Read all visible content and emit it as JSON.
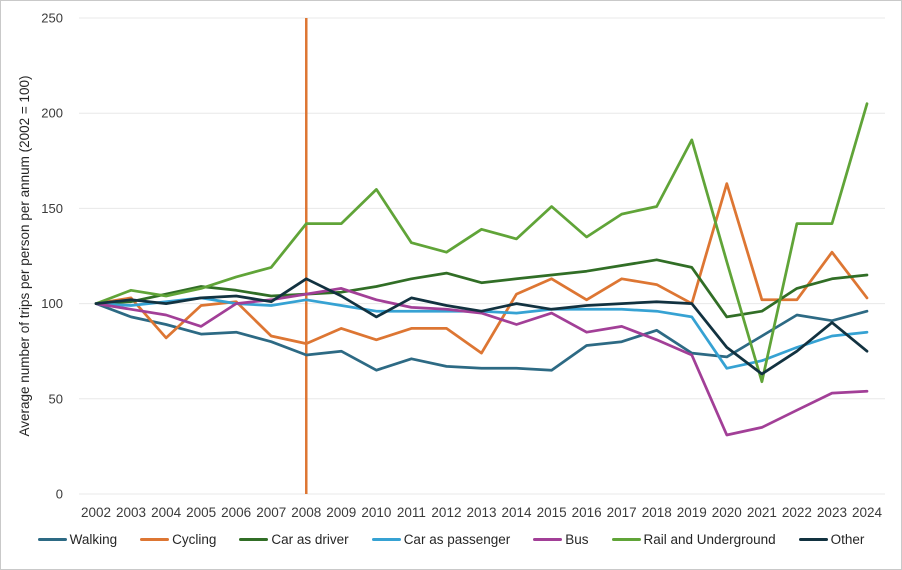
{
  "chart_data": {
    "type": "line",
    "title": "",
    "ylabel": "Average number of trips per person per annum (2002 = 100)",
    "xlabel": "",
    "x": [
      2002,
      2003,
      2004,
      2005,
      2006,
      2007,
      2008,
      2009,
      2010,
      2011,
      2012,
      2013,
      2014,
      2015,
      2016,
      2017,
      2018,
      2019,
      2020,
      2021,
      2022,
      2023,
      2024
    ],
    "xtick_labels": [
      "2002",
      "2003",
      "2004",
      "2005",
      "2006",
      "2007",
      "2008",
      "2009",
      "2010",
      "2011",
      "2012",
      "2013",
      "2014",
      "2015",
      "2016",
      "2017",
      "2018",
      "2019",
      "2020",
      "2021",
      "2022",
      "2023",
      "2024"
    ],
    "ylim": [
      0,
      250
    ],
    "yticks": [
      0,
      50,
      100,
      150,
      200,
      250
    ],
    "ytick_labels": [
      "0",
      "50",
      "100",
      "150",
      "200",
      "250"
    ],
    "grid": true,
    "legend_position": "bottom",
    "annotations": [
      {
        "type": "vline",
        "x": 2008,
        "y_from": 0,
        "y_to": 250,
        "color": "#dd7633",
        "note": "vertical orange line at 2008"
      }
    ],
    "series": [
      {
        "name": "Walking",
        "color": "#2d6a84",
        "values": [
          100,
          93,
          89,
          84,
          85,
          80,
          73,
          75,
          65,
          71,
          67,
          66,
          66,
          65,
          78,
          80,
          86,
          74,
          72,
          83,
          94,
          91,
          96
        ]
      },
      {
        "name": "Cycling",
        "color": "#dd7633",
        "values": [
          100,
          103,
          82,
          99,
          101,
          83,
          79,
          87,
          81,
          87,
          87,
          74,
          105,
          113,
          102,
          113,
          110,
          100,
          163,
          102,
          102,
          127,
          103
        ]
      },
      {
        "name": "Car as driver",
        "color": "#316e26",
        "values": [
          100,
          101,
          105,
          109,
          107,
          104,
          105,
          106,
          109,
          113,
          116,
          111,
          113,
          115,
          117,
          120,
          123,
          119,
          93,
          96,
          108,
          113,
          115
        ]
      },
      {
        "name": "Car as passenger",
        "color": "#36a2d3",
        "values": [
          100,
          99,
          101,
          103,
          100,
          99,
          102,
          99,
          96,
          96,
          96,
          96,
          95,
          97,
          97,
          97,
          96,
          93,
          66,
          70,
          77,
          83,
          85
        ]
      },
      {
        "name": "Bus",
        "color": "#a23f97",
        "values": [
          100,
          97,
          94,
          88,
          100,
          102,
          105,
          108,
          102,
          98,
          97,
          95,
          89,
          95,
          85,
          88,
          81,
          73,
          31,
          35,
          44,
          53,
          54
        ]
      },
      {
        "name": "Rail and Underground",
        "color": "#60a438",
        "values": [
          100,
          107,
          104,
          108,
          114,
          119,
          142,
          142,
          160,
          132,
          127,
          139,
          134,
          151,
          135,
          147,
          151,
          186,
          122,
          59,
          142,
          142,
          205
        ]
      },
      {
        "name": "Other",
        "color": "#123240",
        "values": [
          100,
          102,
          100,
          103,
          104,
          101,
          113,
          104,
          93,
          103,
          99,
          96,
          100,
          97,
          99,
          100,
          101,
          100,
          77,
          63,
          75,
          90,
          75
        ]
      }
    ],
    "style": {
      "grid_color": "#e8e8e8",
      "tick_text_color": "#3b3b3b",
      "axis_title_color": "#262626",
      "line_width": 2.75
    }
  }
}
